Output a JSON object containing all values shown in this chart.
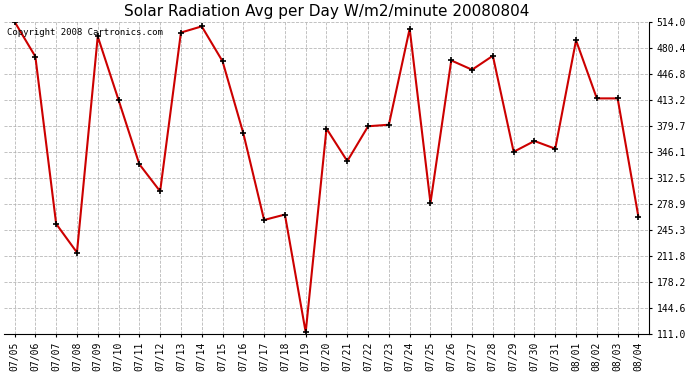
{
  "title": "Solar Radiation Avg per Day W/m2/minute 20080804",
  "copyright_text": "Copyright 2008 Cartronics.com",
  "x_labels": [
    "07/05",
    "07/06",
    "07/07",
    "07/08",
    "07/09",
    "07/10",
    "07/11",
    "07/12",
    "07/13",
    "07/14",
    "07/15",
    "07/16",
    "07/17",
    "07/18",
    "07/19",
    "07/20",
    "07/21",
    "07/22",
    "07/23",
    "07/24",
    "07/25",
    "07/26",
    "07/27",
    "07/28",
    "07/29",
    "07/30",
    "07/31",
    "08/01",
    "08/02",
    "08/03",
    "08/04"
  ],
  "y_values": [
    514.0,
    469.0,
    253.0,
    216.0,
    495.0,
    413.0,
    330.0,
    295.0,
    500.0,
    508.0,
    463.0,
    370.0,
    258.0,
    265.0,
    113.0,
    376.0,
    334.0,
    379.0,
    381.0,
    505.0,
    280.0,
    464.0,
    452.0,
    470.0,
    346.0,
    360.0,
    350.0,
    490.0,
    415.0,
    415.0,
    262.0
  ],
  "y_min": 111.0,
  "y_max": 514.0,
  "y_ticks": [
    111.0,
    144.6,
    178.2,
    211.8,
    245.3,
    278.9,
    312.5,
    346.1,
    379.7,
    413.2,
    446.8,
    480.4,
    514.0
  ],
  "line_color": "#cc0000",
  "bg_color": "#ffffff",
  "grid_color": "#b0b0b0",
  "title_fontsize": 11,
  "label_fontsize": 7,
  "copyright_fontsize": 6.5
}
